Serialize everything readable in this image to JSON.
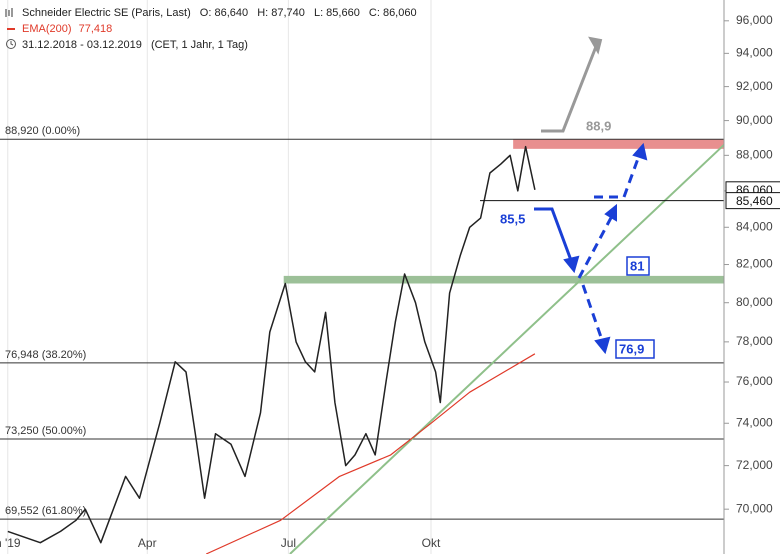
{
  "chart_data": {
    "type": "line",
    "log": true,
    "title": "Schneider Electric SE (Paris, Last)",
    "ohlc": [
      "O: 86,640",
      "H: 87,740",
      "L: 85,660",
      "C: 86,060"
    ],
    "indicator": {
      "name": "EMA(200)",
      "value": "77,418"
    },
    "period": "31.12.2018 - 03.12.2019",
    "period_note": "(CET, 1 Jahr, 1 Tag)",
    "xlim": [
      -5,
      462
    ],
    "ylim": [
      68000,
      97300
    ],
    "xticks": [
      {
        "value": 0,
        "label": "n '19"
      },
      {
        "value": 90,
        "label": "Apr"
      },
      {
        "value": 181,
        "label": "Jul"
      },
      {
        "value": 273,
        "label": "Okt"
      }
    ],
    "yticks": [
      {
        "value": 70000,
        "label": "70,000"
      },
      {
        "value": 72000,
        "label": "72,000"
      },
      {
        "value": 74000,
        "label": "74,000"
      },
      {
        "value": 76000,
        "label": "76,000"
      },
      {
        "value": 78000,
        "label": "78,000"
      },
      {
        "value": 80000,
        "label": "80,000"
      },
      {
        "value": 82000,
        "label": "82,000"
      },
      {
        "value": 84000,
        "label": "84,000"
      },
      {
        "value": 86000,
        "label": "86,000"
      },
      {
        "value": 88000,
        "label": "88,000"
      },
      {
        "value": 90000,
        "label": "90,000"
      },
      {
        "value": 92000,
        "label": "92,000"
      },
      {
        "value": 94000,
        "label": "94,000"
      },
      {
        "value": 96000,
        "label": "96,000"
      }
    ],
    "series": [
      {
        "name": "Schneider Electric SE",
        "color": "#222222",
        "x": [
          0,
          21,
          34,
          44,
          50,
          60,
          76,
          85,
          98,
          108,
          115,
          121,
          127,
          134,
          144,
          153,
          163,
          169,
          179,
          186,
          192,
          198,
          205,
          211,
          218,
          224,
          231,
          237,
          244,
          250,
          256,
          263,
          269,
          276,
          279,
          285,
          292,
          298,
          305,
          311,
          318,
          324,
          329,
          334,
          340
        ],
        "values": [
          69000,
          68500,
          69000,
          69500,
          70000,
          68500,
          71500,
          70500,
          74000,
          77000,
          76500,
          73500,
          70500,
          73500,
          73000,
          71500,
          74500,
          78500,
          81000,
          78000,
          77000,
          76500,
          79500,
          75000,
          72000,
          72500,
          73500,
          72500,
          76000,
          79000,
          81500,
          80000,
          78000,
          76500,
          75000,
          80500,
          82500,
          84000,
          84500,
          87000,
          87500,
          88000,
          86000,
          88500,
          86060
        ]
      },
      {
        "name": "EMA(200)",
        "color": "#e03a2a",
        "x": [
          128,
          176,
          214,
          247,
          273,
          298,
          340
        ],
        "values": [
          68000,
          69500,
          71500,
          72500,
          74000,
          75500,
          77400
        ]
      }
    ],
    "trendline": {
      "color": "#8fc08a",
      "x": [
        182,
        462
      ],
      "values": [
        68000,
        88600
      ]
    },
    "fib_levels": [
      {
        "value": 88920,
        "label": "88,920 (0.00%)"
      },
      {
        "value": 76948,
        "label": "76,948 (38.20%)"
      },
      {
        "value": 73250,
        "label": "73,250 (50.00%)"
      },
      {
        "value": 69552,
        "label": "69,552 (61.80%)"
      }
    ],
    "zones": [
      {
        "color": "#e88f8f",
        "x": [
          326,
          462
        ],
        "values": [
          88920,
          88370
        ]
      },
      {
        "color": "#9cc098",
        "x": [
          178,
          462
        ],
        "values": [
          81400,
          81000
        ]
      }
    ],
    "price_lines": [
      {
        "value": 86060,
        "label": "86,060"
      },
      {
        "value": 85460,
        "label": "85,460"
      }
    ],
    "annotations": [
      "88,9",
      "85,5",
      "81",
      "76,9"
    ]
  }
}
